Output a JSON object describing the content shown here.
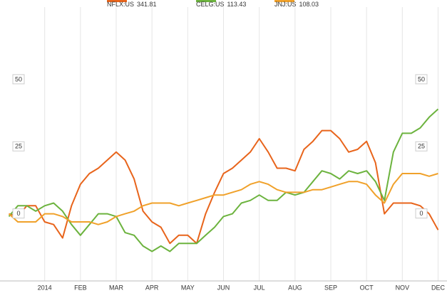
{
  "chart_data": {
    "type": "line",
    "x": [
      -1,
      -0.75,
      -0.5,
      -0.25,
      0,
      0.25,
      0.5,
      0.75,
      1,
      1.25,
      1.5,
      1.75,
      2,
      2.25,
      2.5,
      2.75,
      3,
      3.25,
      3.5,
      3.75,
      4,
      4.25,
      4.5,
      4.75,
      5,
      5.25,
      5.5,
      5.75,
      6,
      6.25,
      6.5,
      6.75,
      7,
      7.25,
      7.5,
      7.75,
      8,
      8.25,
      8.5,
      8.75,
      9,
      9.25,
      9.5,
      9.75,
      10,
      10.25,
      10.5,
      10.75,
      11
    ],
    "series": [
      {
        "name": "NFLX:US",
        "last": 341.81,
        "color": "#e8641b",
        "values": [
          0,
          -1,
          3,
          3,
          -3,
          -4,
          -9,
          3,
          11,
          15,
          17,
          20,
          23,
          20,
          13,
          1,
          -3,
          -5,
          -11,
          -8,
          -8,
          -11,
          0,
          8,
          15,
          17,
          20,
          23,
          28,
          23,
          17,
          17,
          16,
          24,
          27,
          31,
          31,
          28,
          23,
          24,
          27,
          19,
          0,
          4,
          4,
          4,
          3,
          0,
          -6
        ]
      },
      {
        "name": "CELG:US",
        "last": 113.43,
        "color": "#6cb33e",
        "values": [
          -1,
          3,
          3,
          1,
          3,
          4,
          1,
          -4,
          -8,
          -4,
          0,
          0,
          -1,
          -7,
          -8,
          -12,
          -14,
          -12,
          -14,
          -11,
          -11,
          -11,
          -8,
          -5,
          -1,
          0,
          4,
          5,
          7,
          5,
          5,
          8,
          7,
          8,
          12,
          16,
          15,
          13,
          16,
          15,
          16,
          12,
          5,
          23,
          30,
          30,
          32,
          36,
          39
        ]
      },
      {
        "name": "JNJ:US",
        "last": 108.03,
        "color": "#f0a12a",
        "values": [
          0,
          -3,
          -3,
          -3,
          0,
          0,
          -1,
          -3,
          -3,
          -3,
          -4,
          -3,
          -1,
          0,
          1,
          3,
          4,
          4,
          4,
          3,
          4,
          5,
          6,
          7,
          7,
          8,
          9,
          11,
          12,
          11,
          9,
          8,
          8,
          8,
          9,
          9,
          10,
          11,
          12,
          12,
          11,
          7,
          4,
          11,
          15,
          15,
          15,
          14,
          15
        ]
      }
    ],
    "xlim": [
      -1.05,
      11.05
    ],
    "xticks": [
      {
        "value": 0,
        "label": "2014"
      },
      {
        "value": 1,
        "label": "FEB"
      },
      {
        "value": 2,
        "label": "MAR"
      },
      {
        "value": 3,
        "label": "APR"
      },
      {
        "value": 4,
        "label": "MAY"
      },
      {
        "value": 5,
        "label": "JUN"
      },
      {
        "value": 6,
        "label": "JUL"
      },
      {
        "value": 7,
        "label": "AUG"
      },
      {
        "value": 8,
        "label": "SEP"
      },
      {
        "value": 9,
        "label": "OCT"
      },
      {
        "value": 10,
        "label": "NOV"
      },
      {
        "value": 11,
        "label": "DEC"
      }
    ],
    "ylim": [
      -25,
      77
    ],
    "yticks": [
      0,
      25,
      50
    ],
    "grid": true
  }
}
